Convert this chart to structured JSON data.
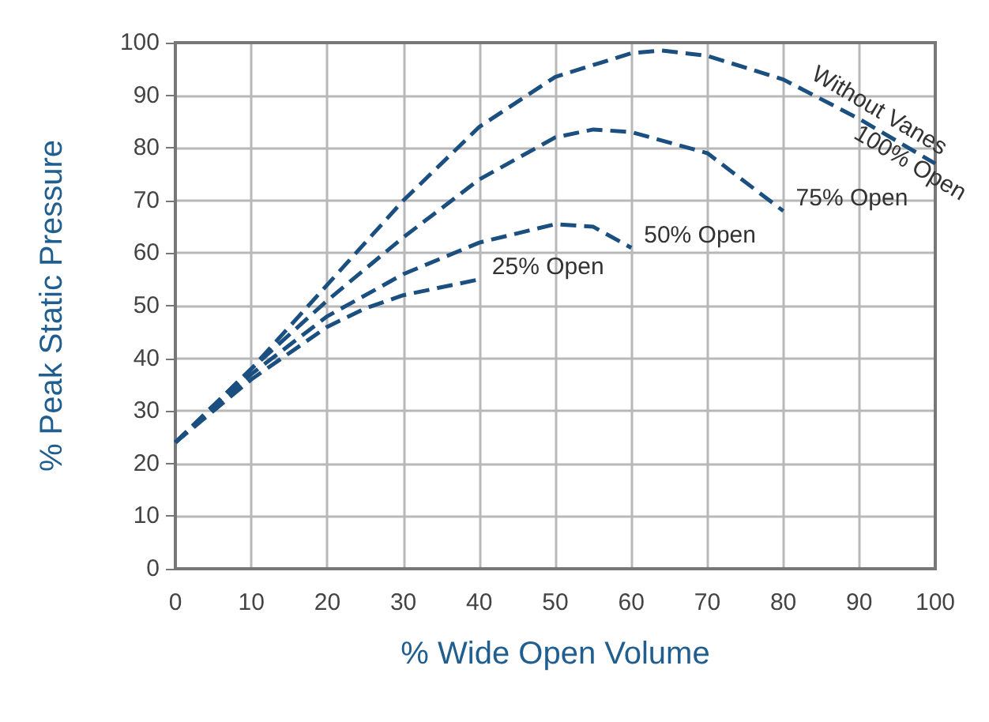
{
  "chart_data": {
    "type": "line",
    "xlabel": "% Wide Open Volume",
    "ylabel": "% Peak Static Pressure",
    "xlim": [
      0,
      100
    ],
    "ylim": [
      0,
      100
    ],
    "xticks": [
      0,
      10,
      20,
      30,
      40,
      50,
      60,
      70,
      80,
      90,
      100
    ],
    "yticks": [
      0,
      10,
      20,
      30,
      40,
      50,
      60,
      70,
      80,
      90,
      100
    ],
    "grid": true,
    "marker": "none",
    "line_style": "dashed",
    "legend": false,
    "series": [
      {
        "name": "100% Open",
        "color": "#1a4f80",
        "x": [
          0,
          10,
          20,
          30,
          40,
          50,
          60,
          64,
          70,
          80,
          90,
          100
        ],
        "values": [
          24,
          38,
          54,
          70,
          84,
          93.5,
          98,
          98.5,
          97.5,
          93,
          85.5,
          77
        ]
      },
      {
        "name": "75% Open",
        "color": "#1a4f80",
        "x": [
          0,
          10,
          20,
          30,
          40,
          50,
          55,
          60,
          70,
          80
        ],
        "values": [
          24,
          38,
          51,
          63,
          74,
          82,
          83.5,
          83,
          79,
          68
        ]
      },
      {
        "name": "50% Open",
        "color": "#1a4f80",
        "x": [
          0,
          10,
          20,
          30,
          40,
          50,
          55,
          60
        ],
        "values": [
          24,
          37,
          48,
          56,
          62,
          65.5,
          65,
          61
        ]
      },
      {
        "name": "25% Open",
        "color": "#1a4f80",
        "x": [
          0,
          10,
          20,
          25,
          30,
          40
        ],
        "values": [
          24,
          36,
          46,
          49.5,
          52,
          55
        ]
      }
    ],
    "annotations": [
      "Without Vanes"
    ]
  }
}
